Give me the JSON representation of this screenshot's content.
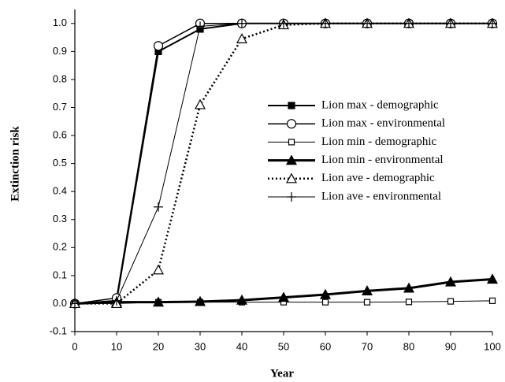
{
  "chart_data": {
    "type": "line",
    "x_label": "Year",
    "y_label": "Extinction  risk",
    "x": [
      0,
      10,
      20,
      30,
      40,
      50,
      60,
      70,
      80,
      90,
      100
    ],
    "xlim": [
      0,
      100
    ],
    "xticks": [
      0,
      10,
      20,
      30,
      40,
      50,
      60,
      70,
      80,
      90,
      100
    ],
    "ylim": [
      -0.1,
      1.05
    ],
    "yticks": [
      -0.1,
      {
        "value": 0,
        "label": "0.0"
      },
      0.1,
      0.2,
      0.3,
      0.4,
      0.5,
      0.6,
      0.7,
      0.8,
      0.9,
      {
        "value": 1,
        "label": "1.0"
      }
    ],
    "series": [
      {
        "name": "Lion max - demographic",
        "color": "#000000",
        "values": [
          0,
          0.01,
          0.9,
          0.98,
          1,
          1,
          1,
          1,
          1,
          1,
          1
        ]
      },
      {
        "name": "Lion max - environmental",
        "color": "#000000",
        "values": [
          0,
          0.02,
          0.92,
          1,
          1,
          1,
          1,
          1,
          1,
          1,
          1
        ]
      },
      {
        "name": "Lion min - demographic",
        "color": "#000000",
        "values": [
          0,
          0,
          0.005,
          0.005,
          0.005,
          0.005,
          0.005,
          0.005,
          0.006,
          0.008,
          0.01
        ]
      },
      {
        "name": "Lion min - environmental",
        "color": "#000000",
        "values": [
          0,
          0.005,
          0.005,
          0.007,
          0.012,
          0.022,
          0.032,
          0.045,
          0.055,
          0.077,
          0.087
        ]
      },
      {
        "name": "Lion ave - demographic",
        "color": "#000000",
        "values": [
          0,
          0,
          0.12,
          0.71,
          0.945,
          0.995,
          1,
          1,
          1,
          1,
          1
        ]
      },
      {
        "name": "Lion ave - environmental",
        "color": "#000000",
        "values": [
          0,
          0.01,
          0.345,
          0.99,
          1,
          1,
          1,
          1,
          1,
          1,
          1
        ]
      }
    ]
  }
}
